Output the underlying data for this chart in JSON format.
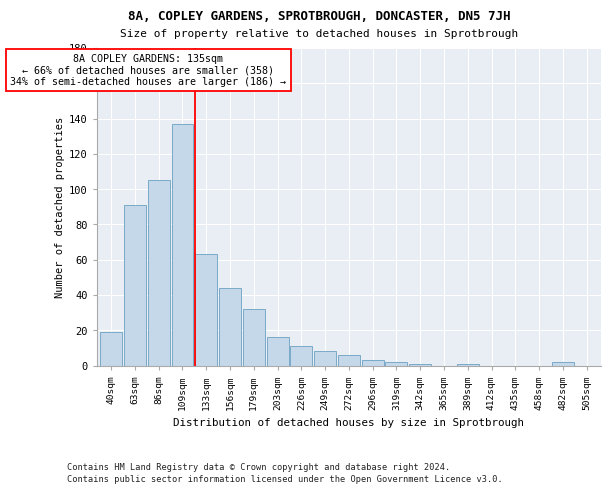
{
  "title1": "8A, COPLEY GARDENS, SPROTBROUGH, DONCASTER, DN5 7JH",
  "title2": "Size of property relative to detached houses in Sprotbrough",
  "xlabel": "Distribution of detached houses by size in Sprotbrough",
  "ylabel": "Number of detached properties",
  "bar_heights": [
    19,
    91,
    105,
    137,
    63,
    44,
    32,
    16,
    11,
    8,
    6,
    3,
    2,
    1,
    0,
    1,
    0,
    0,
    0,
    2,
    0
  ],
  "categories": [
    "40sqm",
    "63sqm",
    "86sqm",
    "109sqm",
    "133sqm",
    "156sqm",
    "179sqm",
    "203sqm",
    "226sqm",
    "249sqm",
    "272sqm",
    "296sqm",
    "319sqm",
    "342sqm",
    "365sqm",
    "389sqm",
    "412sqm",
    "435sqm",
    "458sqm",
    "482sqm",
    "505sqm"
  ],
  "bar_color": "#c5d8ea",
  "bar_edge_color": "#7aaac8",
  "vline_color": "red",
  "vline_bin": 4,
  "annotation_line1": "8A COPLEY GARDENS: 135sqm",
  "annotation_line2": "← 66% of detached houses are smaller (358)",
  "annotation_line3": "34% of semi-detached houses are larger (186) →",
  "annotation_box_edge": "red",
  "ylim": [
    0,
    180
  ],
  "yticks": [
    0,
    20,
    40,
    60,
    80,
    100,
    120,
    140,
    160,
    180
  ],
  "grid_color": "#ffffff",
  "bg_color": "#e8eef4",
  "footer1": "Contains HM Land Registry data © Crown copyright and database right 2024.",
  "footer2": "Contains public sector information licensed under the Open Government Licence v3.0."
}
